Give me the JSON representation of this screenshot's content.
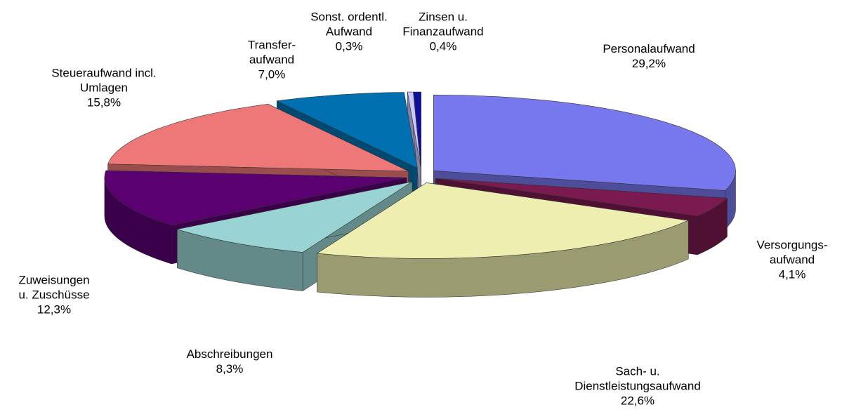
{
  "chart_data": {
    "type": "pie3d",
    "categories": [
      "Personalaufwand",
      "Versorgungs-\naufwand",
      "Sach- u.\nDienstleistungsaufwand",
      "Abschreibungen",
      "Zuweisungen\nu. Zuschüsse",
      "Steueraufwand incl.\nUmlagen",
      "Transfer-\naufwand",
      "Sonst. ordentl.\nAufwand",
      "Zinsen u.\nFinanzaufwand"
    ],
    "values": [
      29.2,
      4.1,
      22.6,
      8.3,
      12.3,
      15.8,
      7.0,
      0.3,
      0.4
    ],
    "value_labels": [
      "29,2%",
      "4,1%",
      "22,6%",
      "8,3%",
      "12,3%",
      "15,8%",
      "7,0%",
      "0,3%",
      "0,4%"
    ],
    "colors": [
      "#7777ee",
      "#7a1a50",
      "#eeeeb0",
      "#99d3d3",
      "#5a0070",
      "#ee7777",
      "#0070b0",
      "#c8c8ff",
      "#1010a0"
    ]
  }
}
